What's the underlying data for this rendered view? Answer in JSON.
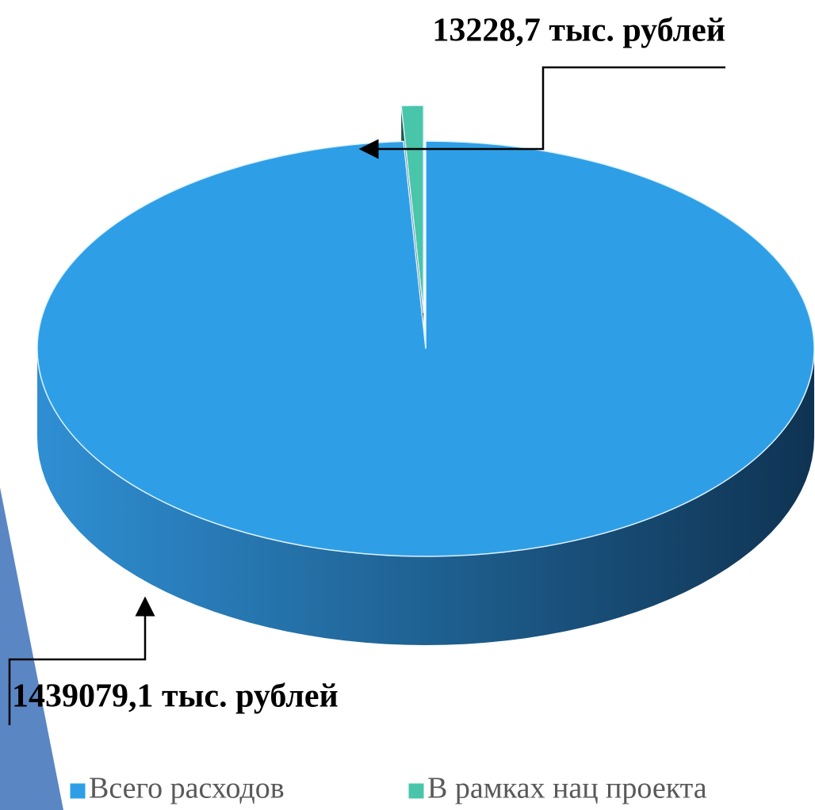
{
  "chart_data": {
    "type": "pie",
    "categories": [
      "Всего расходов",
      "В рамках нац проекта"
    ],
    "values": [
      1439079.1,
      13228.7
    ],
    "value_labels": [
      "1439079,1 тыс. рублей",
      "13228,7 тыс. рублей"
    ],
    "colors": [
      "#2e9fe6",
      "#49c5aa"
    ]
  }
}
